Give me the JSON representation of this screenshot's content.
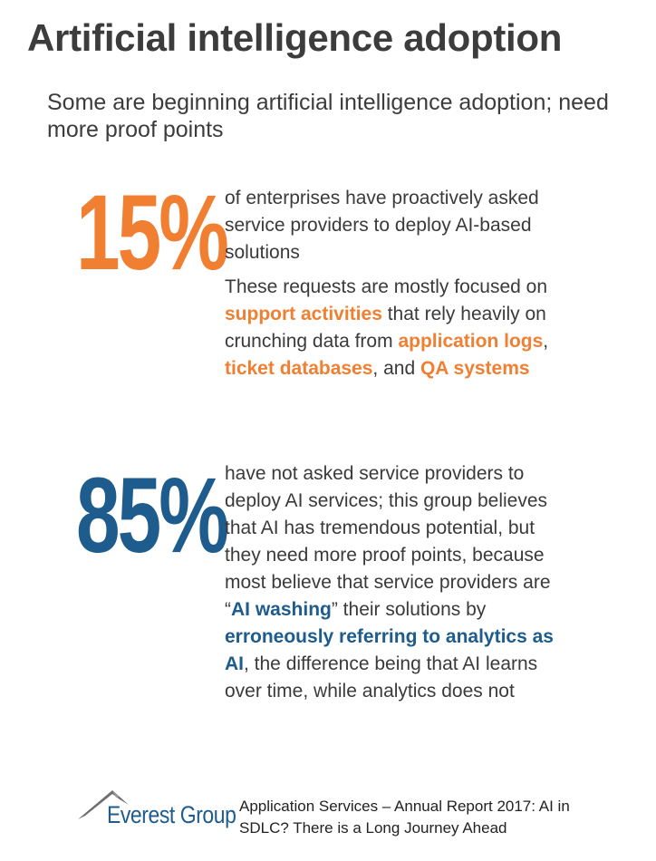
{
  "title": "Artificial intelligence adoption",
  "subtitle": "Some are beginning artificial intelligence adoption; need more proof points",
  "stat1": {
    "number": "15%",
    "text": "of enterprises have proactively asked service providers to deploy AI-based solutions",
    "detail": {
      "t1": "These requests are mostly focused on ",
      "h1": "support activities",
      "t2": " that rely heavily on crunching data from ",
      "h2": "application logs",
      "t3": ", ",
      "h3": "ticket databases",
      "t4": ", and ",
      "h4": "QA systems"
    }
  },
  "stat2": {
    "number": "85%",
    "t1": "have not asked service providers to deploy AI services; this group believes that AI has tremendous potential, but they need more proof points, because most believe that service providers are “",
    "h1": "AI washing",
    "t2": "” their solutions by ",
    "h2": "erroneously referring to analytics as AI",
    "t3": ", the difference being that AI learns over time, while analytics does not"
  },
  "footer": {
    "logo_text": "Everest Group",
    "source": "Application Services – Annual Report 2017: AI in SDLC? There is a Long Journey Ahead"
  },
  "colors": {
    "orange": "#f07f32",
    "blue": "#1d5c8c",
    "text": "#3a3a3a"
  }
}
